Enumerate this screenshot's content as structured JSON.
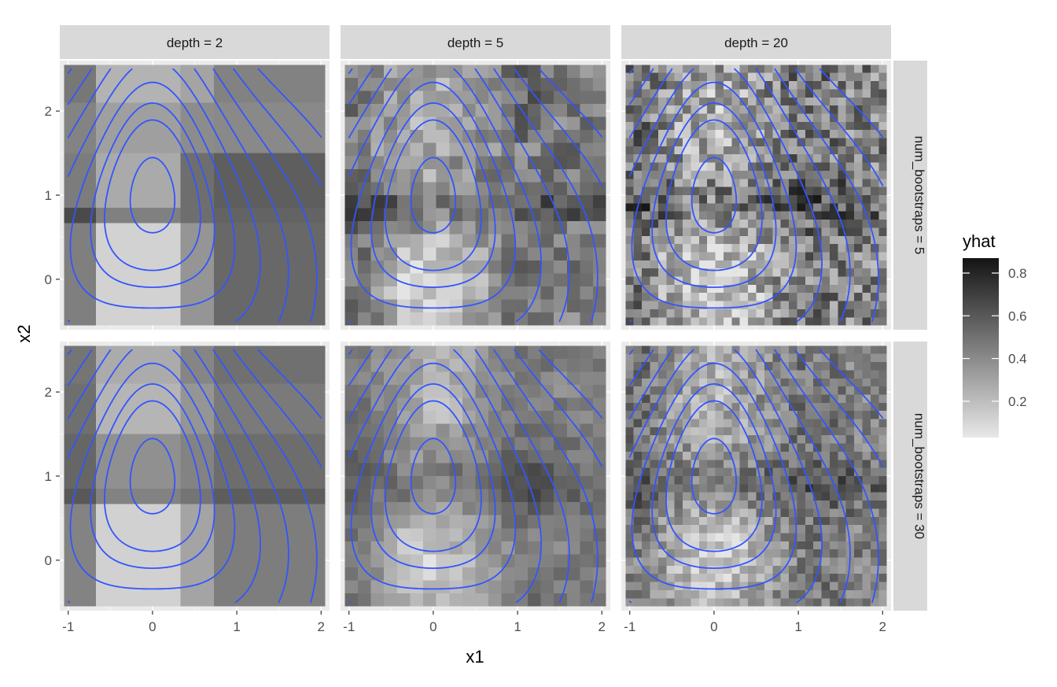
{
  "chart_data": {
    "type": "heatmap",
    "xlabel": "x1",
    "ylabel": "x2",
    "xlim": [
      -1.1,
      2.1
    ],
    "ylim": [
      -0.6,
      2.6
    ],
    "x_ticks": [
      -1,
      0,
      1,
      2
    ],
    "x_tick_labels": [
      "-1",
      "0",
      "1",
      "2"
    ],
    "y_ticks": [
      0,
      1,
      2
    ],
    "y_tick_labels": [
      "0",
      "1",
      "2"
    ],
    "grid": true,
    "columns": [
      {
        "label": "depth = 2",
        "depth": 2
      },
      {
        "label": "depth = 5",
        "depth": 5
      },
      {
        "label": "depth = 20",
        "depth": 20
      }
    ],
    "rows": [
      {
        "label": "num_bootstraps = 5",
        "num_bootstraps": 5
      },
      {
        "label": "num_bootstraps = 30",
        "num_bootstraps": 30
      }
    ],
    "fill": {
      "variable": "yhat",
      "low_color": "#e8e8e8",
      "high_color": "#141414",
      "range": [
        0.03,
        0.87
      ],
      "breaks": [
        0.2,
        0.4,
        0.6,
        0.8
      ],
      "break_labels": [
        "0.2",
        "0.4",
        "0.6",
        "0.8"
      ]
    },
    "contour_color": "#3355ff",
    "legend_position": "right"
  }
}
